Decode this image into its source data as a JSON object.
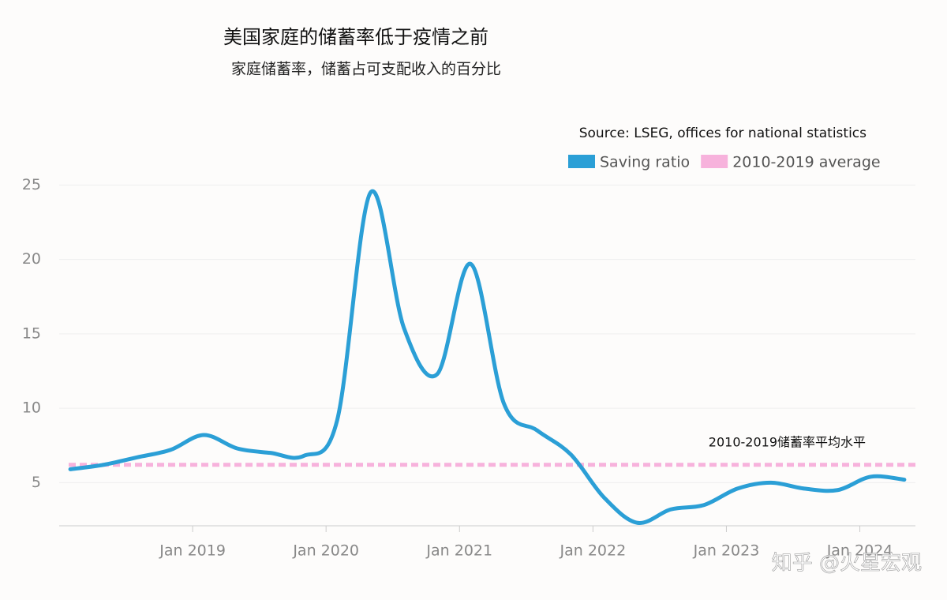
{
  "chart_data": {
    "type": "line",
    "title": "美国家庭的储蓄率低于疫情之前",
    "subtitle": "家庭储蓄率，储蓄占可支配收入的百分比",
    "source": "Source: LSEG, offices for national statistics",
    "annotation": "2010-2019储蓄率平均水平",
    "watermark": "知乎 @火星宏观",
    "x": [
      "2018-02",
      "2018-05",
      "2018-08",
      "2018-11",
      "2019-02",
      "2019-05",
      "2019-08",
      "2019-11",
      "2020-02",
      "2020-05",
      "2020-08",
      "2020-11",
      "2021-02",
      "2021-05",
      "2021-08",
      "2021-11",
      "2022-02",
      "2022-05",
      "2022-08",
      "2022-11",
      "2023-02",
      "2023-05",
      "2023-08",
      "2023-11",
      "2024-02",
      "2024-05"
    ],
    "series": [
      {
        "name": "Saving ratio",
        "color": "#2b9fd6",
        "values": [
          5.9,
          6.2,
          6.7,
          7.2,
          8.2,
          7.3,
          7.0,
          6.8,
          9.2,
          24.5,
          15.4,
          12.3,
          19.7,
          10.3,
          8.5,
          6.9,
          4.0,
          2.3,
          3.2,
          3.5,
          4.6,
          5.0,
          4.6,
          4.5,
          5.4,
          5.2
        ]
      }
    ],
    "reference_lines": [
      {
        "name": "2010-2019 average",
        "value": 6.2,
        "color": "#f7b2dc"
      }
    ],
    "xlim": [
      "2018-01",
      "2024-06"
    ],
    "xticks": [
      {
        "value": "2019-01",
        "label": "Jan 2019"
      },
      {
        "value": "2020-01",
        "label": "Jan 2020"
      },
      {
        "value": "2021-01",
        "label": "Jan 2021"
      },
      {
        "value": "2022-01",
        "label": "Jan 2022"
      },
      {
        "value": "2023-01",
        "label": "Jan 2023"
      },
      {
        "value": "2024-01",
        "label": "Jan 2024"
      }
    ],
    "ylim": [
      2.1,
      25.5
    ],
    "yticks": [
      5,
      10,
      15,
      20,
      25
    ],
    "grid": true
  }
}
